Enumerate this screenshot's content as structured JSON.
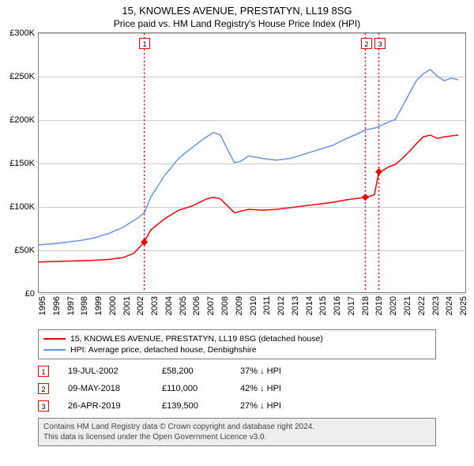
{
  "title": "15, KNOWLES AVENUE, PRESTATYN, LL19 8SG",
  "subtitle": "Price paid vs. HM Land Registry's House Price Index (HPI)",
  "chart": {
    "type": "line",
    "background_color": "#ffffff",
    "grid_color": "#cccccc",
    "border_color": "#808080",
    "y_axis": {
      "min": 0,
      "max": 300000,
      "ticks": [
        0,
        50000,
        100000,
        150000,
        200000,
        250000,
        300000
      ],
      "labels": [
        "£0",
        "£50K",
        "£100K",
        "£150K",
        "£200K",
        "£250K",
        "£300K"
      ]
    },
    "x_axis": {
      "min": 1995,
      "max": 2025.5,
      "ticks": [
        1995,
        1996,
        1997,
        1998,
        1999,
        2000,
        2001,
        2002,
        2003,
        2004,
        2005,
        2006,
        2007,
        2008,
        2009,
        2010,
        2011,
        2012,
        2013,
        2014,
        2015,
        2016,
        2017,
        2018,
        2019,
        2020,
        2021,
        2022,
        2023,
        2024,
        2025
      ],
      "labels": [
        "1995",
        "1996",
        "1997",
        "1998",
        "1999",
        "2000",
        "2001",
        "2002",
        "2003",
        "2004",
        "2005",
        "2006",
        "2007",
        "2008",
        "2009",
        "2010",
        "2011",
        "2012",
        "2013",
        "2014",
        "2015",
        "2016",
        "2017",
        "2018",
        "2019",
        "2020",
        "2021",
        "2022",
        "2023",
        "2024",
        "2025"
      ]
    },
    "series": [
      {
        "name": "property",
        "color": "#ff0000",
        "line_width": 1.5,
        "points": [
          [
            1995,
            35000
          ],
          [
            1996,
            35500
          ],
          [
            1997,
            36000
          ],
          [
            1998,
            36500
          ],
          [
            1999,
            37000
          ],
          [
            2000,
            38000
          ],
          [
            2001,
            40000
          ],
          [
            2001.8,
            45000
          ],
          [
            2002.55,
            58200
          ],
          [
            2003,
            72000
          ],
          [
            2004,
            85000
          ],
          [
            2005,
            95000
          ],
          [
            2006,
            100000
          ],
          [
            2007,
            108000
          ],
          [
            2007.5,
            110000
          ],
          [
            2008,
            108000
          ],
          [
            2008.5,
            100000
          ],
          [
            2009,
            92000
          ],
          [
            2010,
            96000
          ],
          [
            2011,
            95000
          ],
          [
            2012,
            96000
          ],
          [
            2013,
            98000
          ],
          [
            2014,
            100000
          ],
          [
            2015,
            102000
          ],
          [
            2016,
            104000
          ],
          [
            2017,
            107000
          ],
          [
            2018.35,
            110000
          ],
          [
            2018.5,
            110000
          ],
          [
            2019,
            113000
          ],
          [
            2019.32,
            139500
          ],
          [
            2019.5,
            140000
          ],
          [
            2020,
            145000
          ],
          [
            2020.5,
            148000
          ],
          [
            2021,
            155000
          ],
          [
            2021.5,
            163000
          ],
          [
            2022,
            172000
          ],
          [
            2022.5,
            180000
          ],
          [
            2023,
            182000
          ],
          [
            2023.5,
            178000
          ],
          [
            2024,
            180000
          ],
          [
            2024.5,
            181000
          ],
          [
            2025,
            182000
          ]
        ]
      },
      {
        "name": "hpi",
        "color": "#6495ed",
        "line_width": 1.5,
        "points": [
          [
            1995,
            55000
          ],
          [
            1996,
            56000
          ],
          [
            1997,
            58000
          ],
          [
            1998,
            60000
          ],
          [
            1999,
            63000
          ],
          [
            2000,
            68000
          ],
          [
            2001,
            75000
          ],
          [
            2002,
            85000
          ],
          [
            2002.55,
            92000
          ],
          [
            2003,
            110000
          ],
          [
            2004,
            135000
          ],
          [
            2005,
            155000
          ],
          [
            2006,
            168000
          ],
          [
            2007,
            180000
          ],
          [
            2007.5,
            185000
          ],
          [
            2008,
            182000
          ],
          [
            2008.5,
            165000
          ],
          [
            2009,
            150000
          ],
          [
            2009.5,
            152000
          ],
          [
            2010,
            158000
          ],
          [
            2011,
            155000
          ],
          [
            2012,
            153000
          ],
          [
            2013,
            155000
          ],
          [
            2014,
            160000
          ],
          [
            2015,
            165000
          ],
          [
            2016,
            170000
          ],
          [
            2017,
            178000
          ],
          [
            2018,
            185000
          ],
          [
            2018.35,
            188000
          ],
          [
            2019,
            190000
          ],
          [
            2019.32,
            192000
          ],
          [
            2020,
            197000
          ],
          [
            2020.5,
            200000
          ],
          [
            2021,
            215000
          ],
          [
            2021.5,
            230000
          ],
          [
            2022,
            245000
          ],
          [
            2022.5,
            253000
          ],
          [
            2023,
            258000
          ],
          [
            2023.5,
            250000
          ],
          [
            2024,
            245000
          ],
          [
            2024.5,
            248000
          ],
          [
            2025,
            246000
          ]
        ]
      }
    ],
    "vlines": [
      {
        "x": 2002.55,
        "color": "#ff0000",
        "label": "1"
      },
      {
        "x": 2018.35,
        "color": "#ff0000",
        "label": "2"
      },
      {
        "x": 2019.32,
        "color": "#ff0000",
        "label": "3"
      }
    ],
    "sale_markers": [
      {
        "x": 2002.55,
        "y": 58200
      },
      {
        "x": 2018.35,
        "y": 110000
      },
      {
        "x": 2019.32,
        "y": 139500
      }
    ],
    "marker_fill": "#ff0000",
    "marker_size": 6
  },
  "legend": {
    "items": [
      {
        "color": "#ff0000",
        "label": "15, KNOWLES AVENUE, PRESTATYN, LL19 8SG (detached house)"
      },
      {
        "color": "#6495ed",
        "label": "HPI: Average price, detached house, Denbighshire"
      }
    ]
  },
  "markers_table": [
    {
      "num": "1",
      "date": "19-JUL-2002",
      "price": "£58,200",
      "pct": "37% ↓ HPI"
    },
    {
      "num": "2",
      "date": "09-MAY-2018",
      "price": "£110,000",
      "pct": "42% ↓ HPI"
    },
    {
      "num": "3",
      "date": "26-APR-2019",
      "price": "£139,500",
      "pct": "27% ↓ HPI"
    }
  ],
  "footer": {
    "line1": "Contains HM Land Registry data © Crown copyright and database right 2024.",
    "line2": "This data is licensed under the Open Government Licence v3.0."
  }
}
